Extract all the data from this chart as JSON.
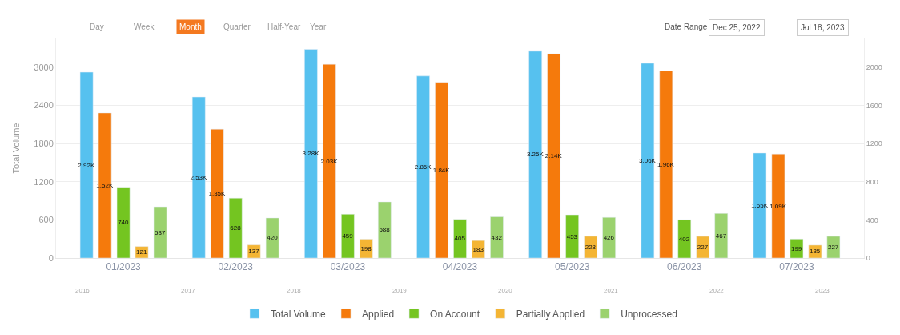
{
  "chart_data": {
    "type": "bar",
    "ylabel": "Total Volume",
    "categories": [
      "01/2023",
      "02/2023",
      "03/2023",
      "04/2023",
      "05/2023",
      "06/2023",
      "07/2023"
    ],
    "series": [
      {
        "name": "Total Volume",
        "color": "#56c1ef",
        "values": [
          2920,
          2530,
          3280,
          2860,
          3250,
          3060,
          1650
        ],
        "value_labels": [
          "2.92K",
          "2.53K",
          "3.28K",
          "2.86K",
          "3.25K",
          "3.06K",
          "1.65K"
        ]
      },
      {
        "name": "Applied",
        "color": "#f57a0c",
        "axis": "y2",
        "values": [
          1520,
          1350,
          2030,
          1840,
          2140,
          1960,
          1090
        ],
        "value_labels": [
          "1.52K",
          "1.35K",
          "2.03K",
          "1.84K",
          "2.14K",
          "1.96K",
          "1.09K"
        ]
      },
      {
        "name": "On Account",
        "color": "#74c521",
        "axis": "y2",
        "values": [
          740,
          628,
          459,
          405,
          453,
          402,
          199
        ]
      },
      {
        "name": "Partially Applied",
        "color": "#f4b534",
        "axis": "y2",
        "values": [
          121,
          137,
          198,
          183,
          228,
          227,
          135
        ]
      },
      {
        "name": "Unprocessed",
        "color": "#9bd26e",
        "axis": "y2",
        "values": [
          537,
          420,
          588,
          432,
          426,
          467,
          227
        ]
      }
    ],
    "data_labels": true,
    "ylim": [
      0,
      3450
    ],
    "yticks": [
      0,
      600,
      1200,
      1800,
      2400,
      3000
    ],
    "y2lim": [
      0,
      2300
    ],
    "y2ticks": [
      0,
      400,
      800,
      1200,
      1600,
      2000
    ],
    "grid": "y",
    "legend": "bottom",
    "annotations": [
      "Day",
      "Week",
      "Month",
      "Quarter",
      "Half-Year",
      "Year",
      "Date Range",
      "Dec 25, 2022",
      "-",
      "Jul 18, 2023",
      "2016",
      "2017",
      "2018",
      "2019",
      "2020",
      "2021",
      "2022",
      "2023"
    ]
  }
}
